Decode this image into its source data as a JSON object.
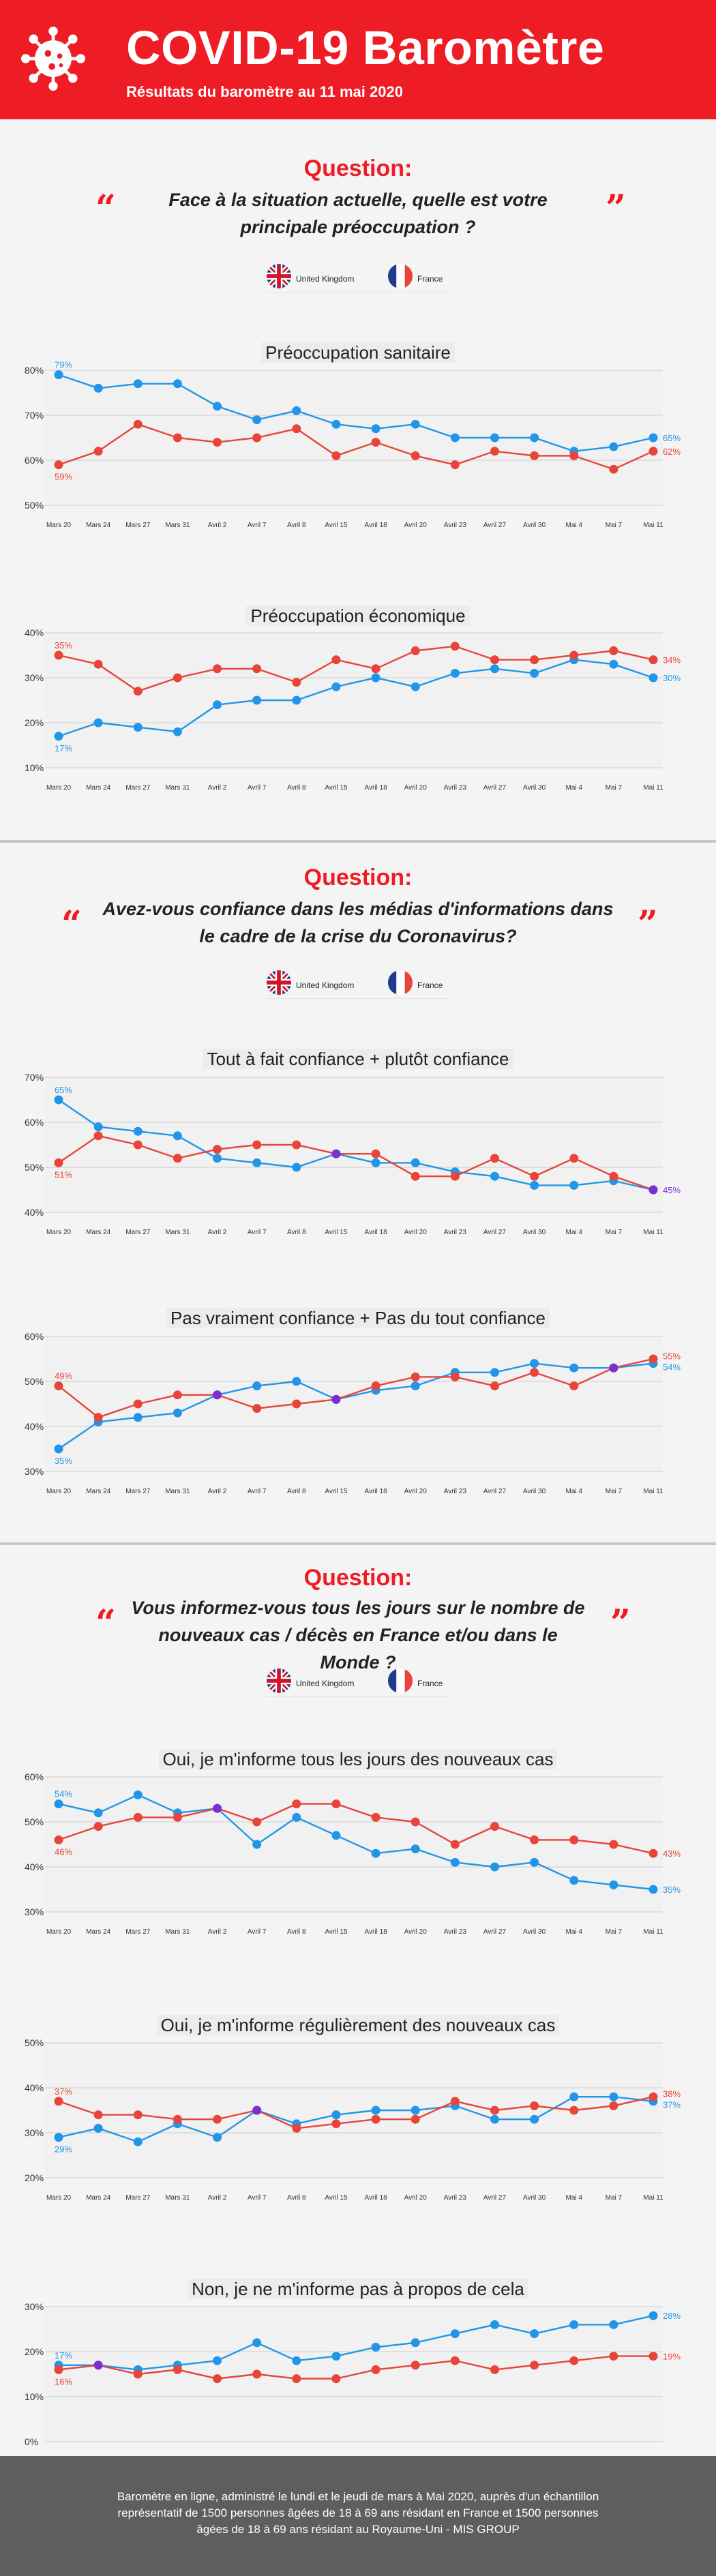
{
  "header": {
    "title": "COVID-19 Baromètre",
    "subtitle": "Résultats du baromètre au 11 mai 2020"
  },
  "legend": {
    "uk": "United Kingdom",
    "fr": "France"
  },
  "colors": {
    "uk": "#e8443a",
    "fr": "#2196e8",
    "overlap": "#7b2fd1",
    "brand": "#ee1c24"
  },
  "sections": [
    {
      "label": "Question:",
      "question": "Face à la situation actuelle, quelle est votre principale préoccupation ?"
    },
    {
      "label": "Question:",
      "question": "Avez-vous confiance dans les médias d'informations dans le cadre de la crise du Coronavirus?"
    },
    {
      "label": "Question:",
      "question": "Vous informez-vous tous les jours sur le nombre de nouveaux cas / décès en France et/ou dans le Monde ?"
    }
  ],
  "footer": {
    "text": "Baromètre en ligne, administré le lundi et le jeudi de mars à Mai 2020, auprès d'un échantillon représentatif de 1500 personnes âgées de 18 à 69 ans résidant en France et 1500 personnes âgées de 18 à 69 ans résidant au Royaume-Uni - MIS GROUP"
  },
  "chart_data": [
    {
      "type": "line",
      "title": "Préoccupation sanitaire",
      "x": [
        "Mars 20",
        "Mars 24",
        "Mars 27",
        "Mars 31",
        "Avril 2",
        "Avril 7",
        "Avril 8",
        "Avril 15",
        "Avril 18",
        "Avril 20",
        "Avril 23",
        "Avril 27",
        "Avril 30",
        "Mai 4",
        "Mai 7",
        "Mai 11"
      ],
      "ylim": [
        50,
        80
      ],
      "yticks": [
        50,
        60,
        70,
        80
      ],
      "ytick_labels": [
        "50%",
        "60%",
        "70%",
        "80%"
      ],
      "series": [
        {
          "name": "France",
          "color": "#2196e8",
          "values": [
            79,
            76,
            77,
            77,
            72,
            69,
            71,
            68,
            67,
            68,
            65,
            65,
            65,
            62,
            63,
            65
          ]
        },
        {
          "name": "United Kingdom",
          "color": "#e8443a",
          "values": [
            59,
            62,
            68,
            65,
            64,
            65,
            67,
            61,
            64,
            61,
            59,
            62,
            61,
            61,
            58,
            62
          ]
        }
      ],
      "labels": [
        "79%",
        "59%",
        "65%",
        "62%"
      ]
    },
    {
      "type": "line",
      "title": "Préoccupation économique",
      "x": [
        "Mars 20",
        "Mars 24",
        "Mars 27",
        "Mars 31",
        "Avril 2",
        "Avril 7",
        "Avril 8",
        "Avril 15",
        "Avril 18",
        "Avril 20",
        "Avril 23",
        "Avril 27",
        "Avril 30",
        "Mai 4",
        "Mai 7",
        "Mai 11"
      ],
      "ylim": [
        10,
        40
      ],
      "yticks": [
        10,
        20,
        30,
        40
      ],
      "ytick_labels": [
        "10%",
        "20%",
        "30%",
        "40%"
      ],
      "series": [
        {
          "name": "France",
          "color": "#2196e8",
          "values": [
            17,
            20,
            19,
            18,
            24,
            25,
            25,
            28,
            30,
            28,
            31,
            32,
            31,
            34,
            33,
            30
          ]
        },
        {
          "name": "United Kingdom",
          "color": "#e8443a",
          "values": [
            35,
            33,
            27,
            30,
            32,
            32,
            29,
            34,
            32,
            36,
            37,
            34,
            34,
            35,
            36,
            34
          ]
        }
      ],
      "labels": [
        "35%",
        "17%",
        "34%",
        "30%"
      ]
    },
    {
      "type": "line",
      "title": "Tout à fait confiance + plutôt confiance",
      "x": [
        "Mars 20",
        "Mars 24",
        "Mars 27",
        "Mars 31",
        "Avril 2",
        "Avril 7",
        "Avril 8",
        "Avril 15",
        "Avril 18",
        "Avril 20",
        "Avril 23",
        "Avril 27",
        "Avril 30",
        "Mai 4",
        "Mai 7",
        "Mai 11"
      ],
      "ylim": [
        40,
        70
      ],
      "yticks": [
        40,
        50,
        60,
        70
      ],
      "ytick_labels": [
        "40%",
        "50%",
        "60%",
        "70%"
      ],
      "series": [
        {
          "name": "France",
          "color": "#2196e8",
          "values": [
            65,
            59,
            58,
            57,
            52,
            51,
            50,
            53,
            51,
            51,
            49,
            48,
            46,
            46,
            47,
            45
          ]
        },
        {
          "name": "United Kingdom",
          "color": "#e8443a",
          "values": [
            51,
            57,
            55,
            52,
            54,
            55,
            55,
            53,
            53,
            48,
            48,
            52,
            48,
            52,
            48,
            45
          ]
        }
      ],
      "labels": [
        "65%",
        "51%",
        "45%"
      ]
    },
    {
      "type": "line",
      "title": "Pas vraiment confiance + Pas du tout confiance",
      "x": [
        "Mars 20",
        "Mars 24",
        "Mars 27",
        "Mars 31",
        "Avril 2",
        "Avril 7",
        "Avril 8",
        "Avril 15",
        "Avril 18",
        "Avril 20",
        "Avril 23",
        "Avril 27",
        "Avril 30",
        "Mai 4",
        "Mai 7",
        "Mai 11"
      ],
      "ylim": [
        30,
        60
      ],
      "yticks": [
        30,
        40,
        50,
        60
      ],
      "ytick_labels": [
        "30%",
        "40%",
        "50%",
        "60%"
      ],
      "series": [
        {
          "name": "France",
          "color": "#2196e8",
          "values": [
            35,
            41,
            42,
            43,
            47,
            49,
            50,
            46,
            48,
            49,
            52,
            52,
            54,
            53,
            53,
            54
          ]
        },
        {
          "name": "United Kingdom",
          "color": "#e8443a",
          "values": [
            49,
            42,
            45,
            47,
            47,
            44,
            45,
            46,
            49,
            51,
            51,
            49,
            52,
            49,
            53,
            55
          ]
        }
      ],
      "labels": [
        "49%",
        "35%",
        "55%",
        "54%"
      ]
    },
    {
      "type": "line",
      "title": "Oui, je m'informe tous les jours des nouveaux cas",
      "x": [
        "Mars 20",
        "Mars 24",
        "Mars 27",
        "Mars 31",
        "Avril 2",
        "Avril 7",
        "Avril 8",
        "Avril 15",
        "Avril 18",
        "Avril 20",
        "Avril 23",
        "Avril 27",
        "Avril 30",
        "Mai 4",
        "Mai 7",
        "Mai 11"
      ],
      "ylim": [
        30,
        60
      ],
      "yticks": [
        30,
        40,
        50,
        60
      ],
      "ytick_labels": [
        "30%",
        "40%",
        "50%",
        "60%"
      ],
      "series": [
        {
          "name": "France",
          "color": "#2196e8",
          "values": [
            54,
            52,
            56,
            52,
            53,
            45,
            51,
            47,
            43,
            44,
            41,
            40,
            41,
            37,
            36,
            35
          ]
        },
        {
          "name": "United Kingdom",
          "color": "#e8443a",
          "values": [
            46,
            49,
            51,
            51,
            53,
            50,
            54,
            54,
            51,
            50,
            45,
            49,
            46,
            46,
            45,
            43
          ]
        }
      ],
      "labels": [
        "54%",
        "46%",
        "43%",
        "35%"
      ]
    },
    {
      "type": "line",
      "title": "Oui, je m'informe régulièrement des nouveaux cas",
      "x": [
        "Mars 20",
        "Mars 24",
        "Mars 27",
        "Mars 31",
        "Avril 2",
        "Avril 7",
        "Avril 8",
        "Avril 15",
        "Avril 18",
        "Avril 20",
        "Avril 23",
        "Avril 27",
        "Avril 30",
        "Mai 4",
        "Mai 7",
        "Mai 11"
      ],
      "ylim": [
        20,
        50
      ],
      "yticks": [
        20,
        30,
        40,
        50
      ],
      "ytick_labels": [
        "20%",
        "30%",
        "40%",
        "50%"
      ],
      "series": [
        {
          "name": "France",
          "color": "#2196e8",
          "values": [
            29,
            31,
            28,
            32,
            29,
            35,
            32,
            34,
            35,
            35,
            36,
            33,
            33,
            38,
            38,
            37
          ]
        },
        {
          "name": "United Kingdom",
          "color": "#e8443a",
          "values": [
            37,
            34,
            34,
            33,
            33,
            35,
            31,
            32,
            33,
            33,
            37,
            35,
            36,
            35,
            36,
            38
          ]
        }
      ],
      "labels": [
        "37%",
        "29%",
        "38%",
        "37%"
      ]
    },
    {
      "type": "line",
      "title": "Non, je ne m'informe pas à propos de cela",
      "x": [
        "Mars 20",
        "Mars 24",
        "Mars 27",
        "Mars 31",
        "Avril 2",
        "Avril 7",
        "Avril 8",
        "Avril 15",
        "Avril 18",
        "Avril 20",
        "Avril 23",
        "Avril 27",
        "Avril 30",
        "Mai 4",
        "Mai 7",
        "Mai 11"
      ],
      "ylim": [
        0,
        30
      ],
      "yticks": [
        0,
        10,
        20,
        30
      ],
      "ytick_labels": [
        "0%",
        "10%",
        "20%",
        "30%"
      ],
      "series": [
        {
          "name": "France",
          "color": "#2196e8",
          "values": [
            17,
            17,
            16,
            17,
            18,
            22,
            18,
            19,
            21,
            22,
            24,
            26,
            24,
            26,
            26,
            28
          ]
        },
        {
          "name": "United Kingdom",
          "color": "#e8443a",
          "values": [
            16,
            17,
            15,
            16,
            14,
            15,
            14,
            14,
            16,
            17,
            18,
            16,
            17,
            18,
            19,
            19
          ]
        }
      ],
      "labels": [
        "17%",
        "16%",
        "28%",
        "19%"
      ]
    }
  ]
}
